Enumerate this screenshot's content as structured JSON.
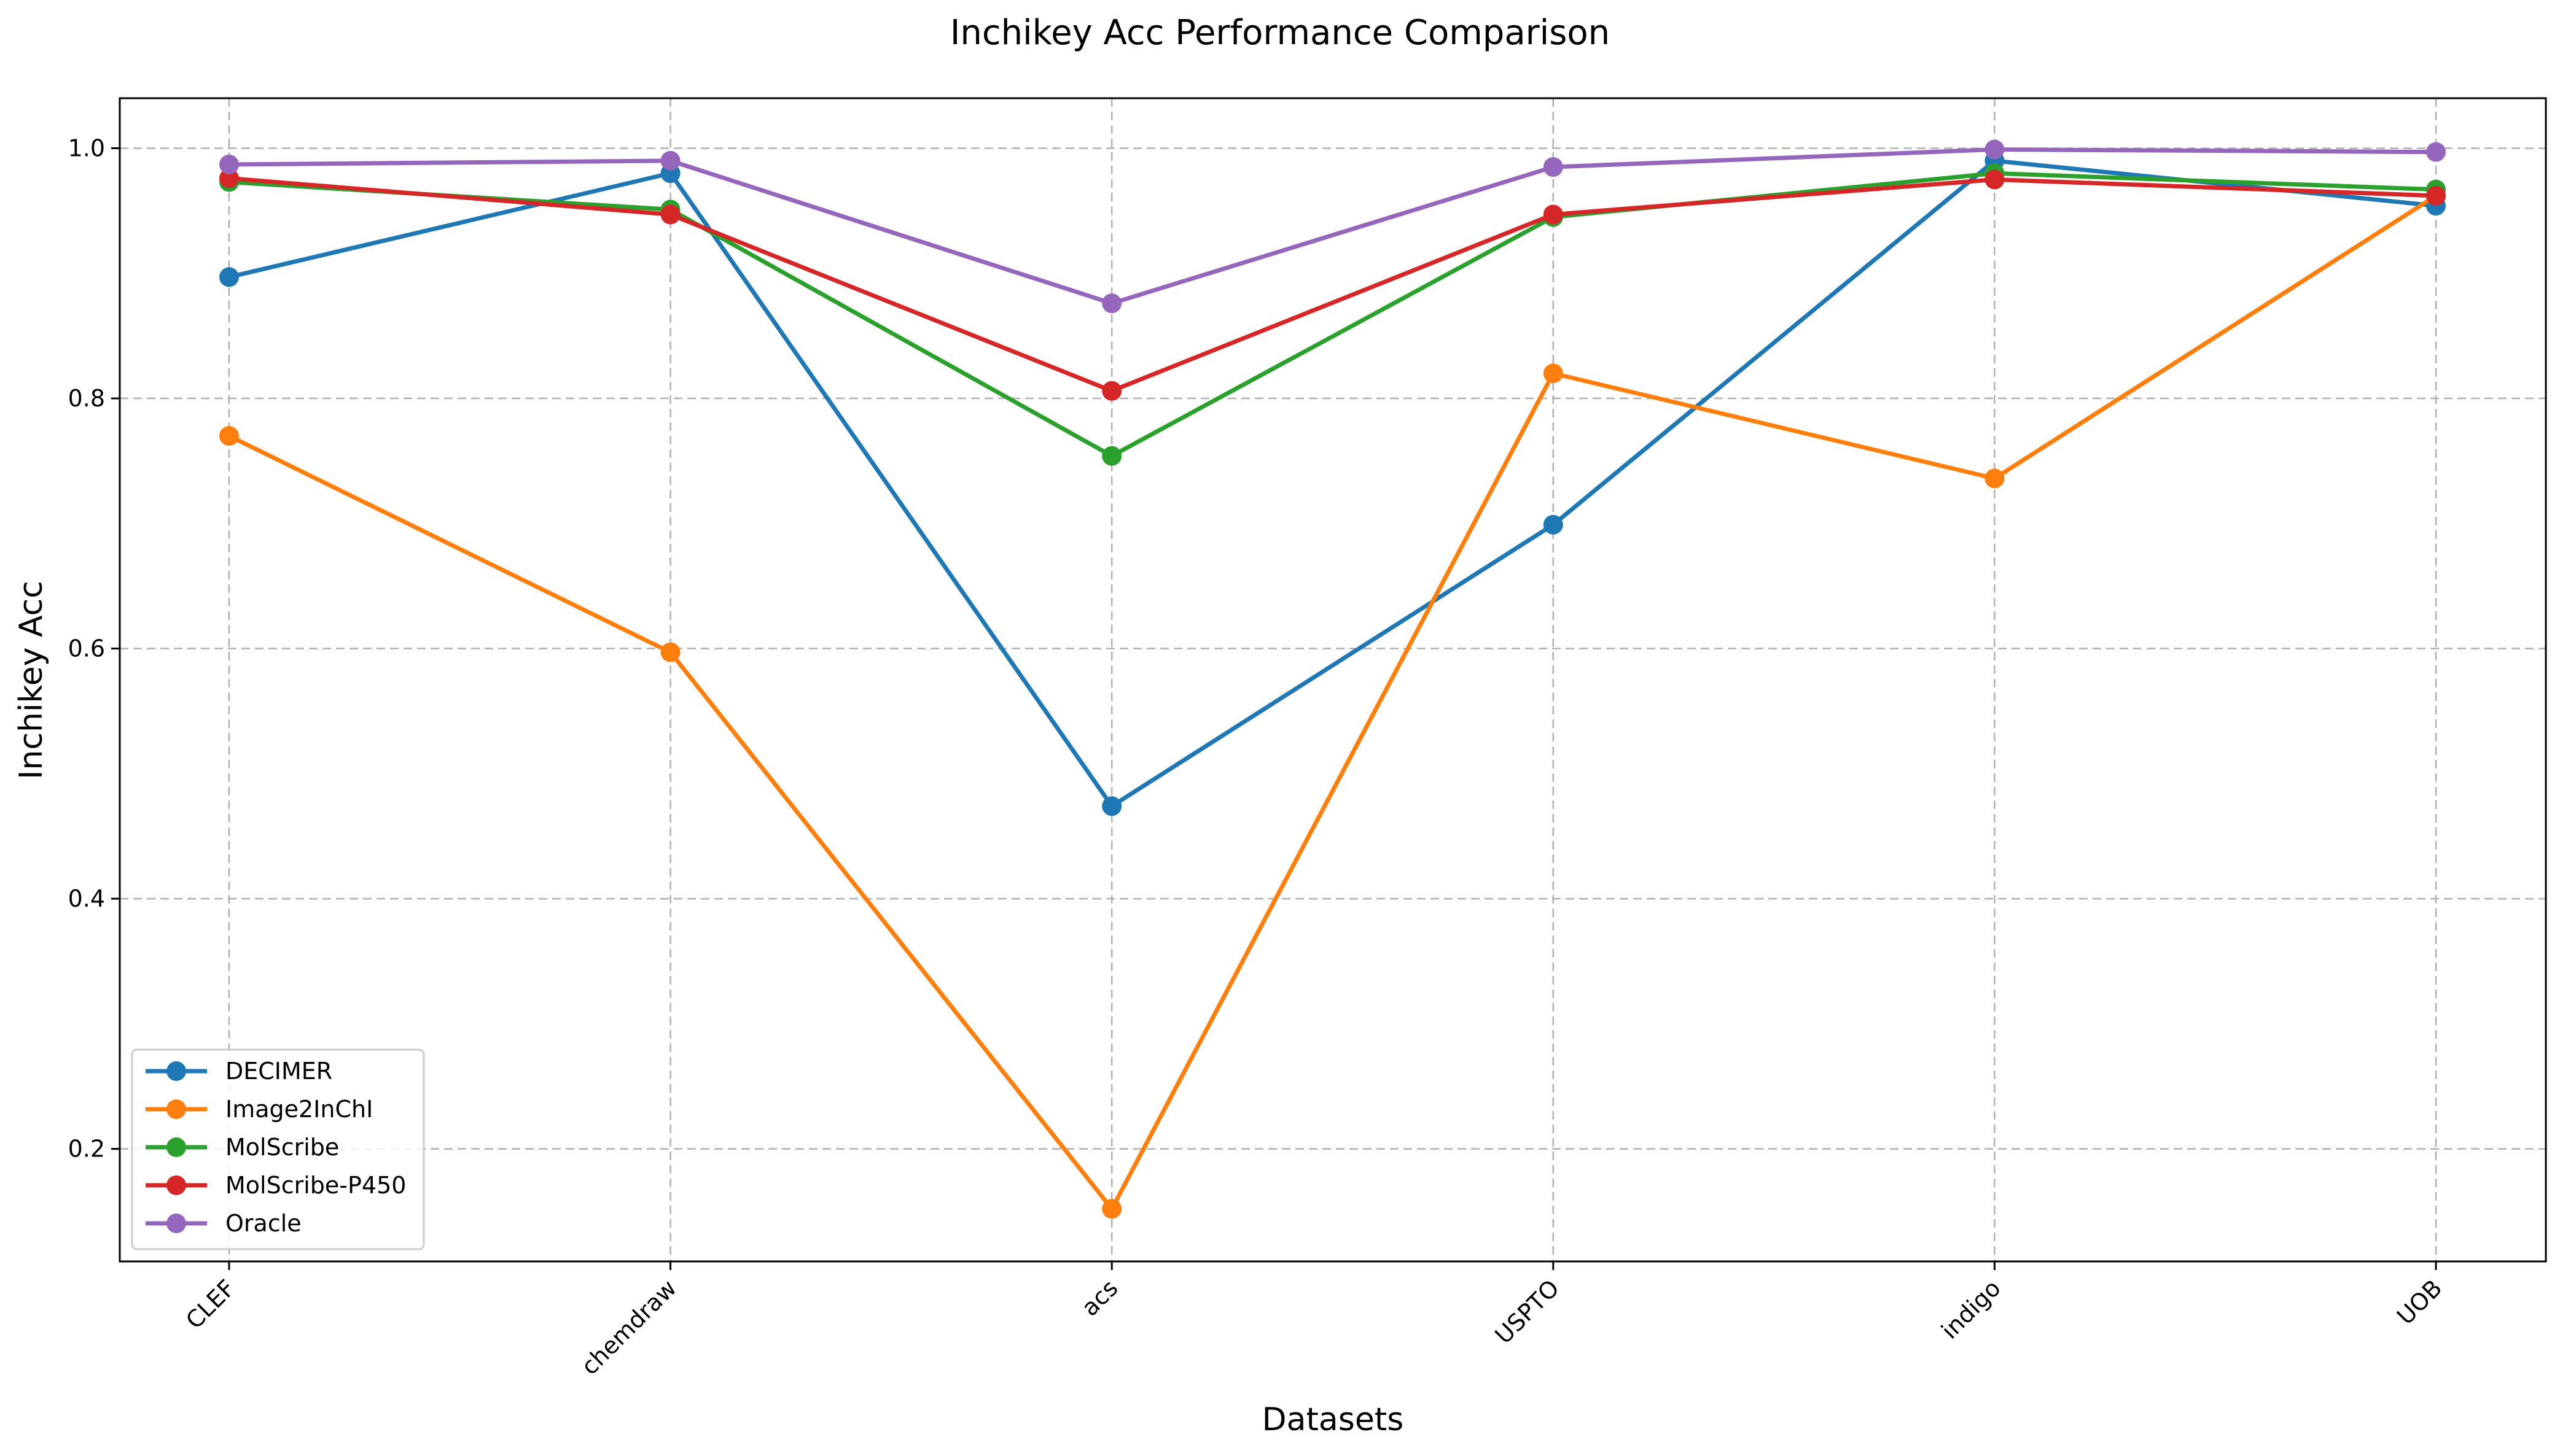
{
  "chart_data": {
    "type": "line",
    "title": "Inchikey Acc Performance Comparison",
    "xlabel": "Datasets",
    "ylabel": "Inchikey Acc",
    "categories": [
      "CLEF",
      "chemdraw",
      "acs",
      "USPTO",
      "indigo",
      "UOB"
    ],
    "ylim": [
      0.11,
      1.04
    ],
    "yticks": [
      0.2,
      0.4,
      0.6,
      0.8,
      1.0
    ],
    "ytick_labels": [
      "0.2",
      "0.4",
      "0.6",
      "0.8",
      "1.0"
    ],
    "grid": true,
    "legend_position": "lower-left",
    "series": [
      {
        "name": "DECIMER",
        "color": "#1f77b4",
        "values": [
          0.897,
          0.98,
          0.474,
          0.699,
          0.99,
          0.954
        ]
      },
      {
        "name": "Image2InChI",
        "color": "#ff7f0e",
        "values": [
          0.77,
          0.597,
          0.152,
          0.82,
          0.736,
          0.962
        ]
      },
      {
        "name": "MolScribe",
        "color": "#2ca02c",
        "values": [
          0.973,
          0.951,
          0.754,
          0.945,
          0.98,
          0.967
        ]
      },
      {
        "name": "MolScribe-P450",
        "color": "#d62728",
        "values": [
          0.976,
          0.947,
          0.806,
          0.947,
          0.975,
          0.962
        ]
      },
      {
        "name": "Oracle",
        "color": "#9467bd",
        "values": [
          0.987,
          0.99,
          0.876,
          0.985,
          0.999,
          0.997
        ]
      }
    ]
  }
}
